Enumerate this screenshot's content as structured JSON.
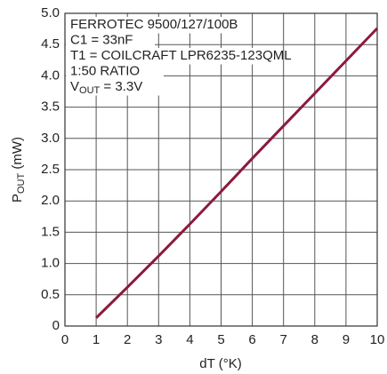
{
  "chart_data": {
    "type": "line",
    "xlabel": "dT (°K)",
    "ylabel": [
      "P",
      "OUT",
      " (mW)"
    ],
    "annotations": [
      "FERROTEC 9500/127/100B",
      "C1 = 33nF",
      "T1 = COILCRAFT LPR6235-123QML",
      "1:50 RATIO",
      [
        "V",
        "OUT",
        " = 3.3V"
      ]
    ],
    "x": [
      1,
      2,
      3,
      4,
      5,
      6,
      7,
      8,
      9,
      10
    ],
    "series": [
      {
        "color": "#8b1a3c",
        "values": [
          0.13,
          0.62,
          1.12,
          1.63,
          2.15,
          2.68,
          3.2,
          3.72,
          4.24,
          4.76
        ]
      }
    ],
    "xlim": [
      0,
      10
    ],
    "xticks": [
      0,
      1,
      2,
      3,
      4,
      5,
      6,
      7,
      8,
      9,
      10
    ],
    "ylim": [
      0,
      5
    ],
    "yticks": [
      0,
      0.5,
      {
        "value": 1,
        "label": "1.0"
      },
      1.5,
      {
        "value": 2,
        "label": "2.0"
      },
      2.5,
      {
        "value": 3,
        "label": "3.0"
      },
      3.5,
      {
        "value": 4,
        "label": "4.0"
      },
      4.5,
      {
        "value": 5,
        "label": "5.0"
      }
    ],
    "grid": true
  }
}
